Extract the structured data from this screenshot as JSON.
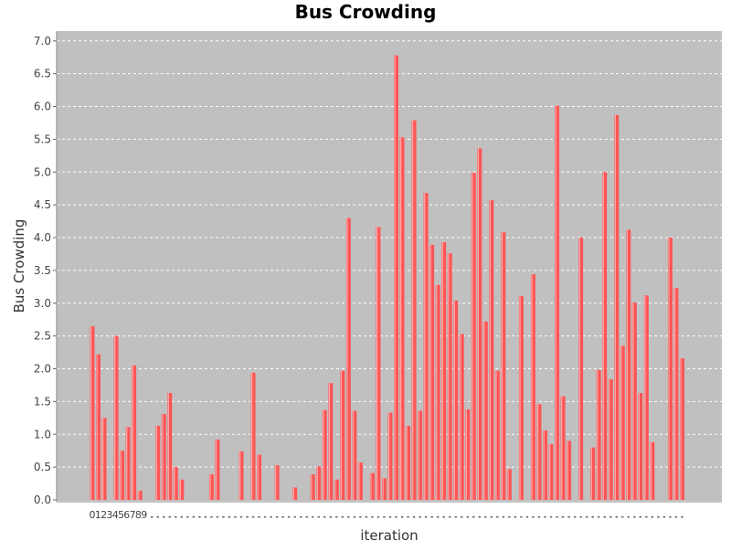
{
  "chart_data": {
    "type": "bar",
    "title": "Bus Crowding",
    "xlabel": "iteration",
    "ylabel": "Bus Crowding",
    "ylim": [
      0,
      7.15
    ],
    "yticks": [
      "0.0",
      "0.5",
      "1.0",
      "1.5",
      "2.0",
      "2.5",
      "3.0",
      "3.5",
      "4.0",
      "4.5",
      "5.0",
      "5.5",
      "6.0",
      "6.5",
      "7.0"
    ],
    "grid": true,
    "legend": "none",
    "colors": {
      "bar": "#ff5555",
      "bar_highlight": "#ffaaaa",
      "plot_bg": "#c0c0c0",
      "grid": "#ffffff"
    },
    "visible_category_labels": [
      "0",
      "1",
      "2",
      "3",
      "4",
      "5",
      "6",
      "7",
      "8",
      "9"
    ],
    "values": [
      2.65,
      2.22,
      1.25,
      0,
      2.5,
      0.75,
      1.11,
      2.05,
      0.14,
      0,
      0,
      1.13,
      1.31,
      1.63,
      0.5,
      0.31,
      0,
      0,
      0,
      0,
      0.39,
      0.92,
      0,
      0,
      0,
      0.74,
      0,
      1.94,
      0.69,
      0,
      0,
      0.53,
      0,
      0,
      0.19,
      0,
      0,
      0.39,
      0.51,
      1.37,
      1.78,
      0.31,
      1.97,
      4.3,
      1.36,
      0.57,
      0,
      0.41,
      4.16,
      0.33,
      1.33,
      6.78,
      5.53,
      1.13,
      5.79,
      1.36,
      4.68,
      3.89,
      3.28,
      3.93,
      3.76,
      3.04,
      2.53,
      1.38,
      4.99,
      5.36,
      2.72,
      4.57,
      1.97,
      4.08,
      0.47,
      0,
      3.11,
      0,
      3.44,
      1.46,
      1.06,
      0.85,
      6.01,
      1.58,
      0.9,
      0,
      4.0,
      0,
      0.8,
      1.98,
      5.0,
      1.84,
      5.87,
      2.35,
      4.12,
      3.01,
      1.63,
      3.12,
      0.88,
      0,
      0,
      4.0,
      3.23,
      2.16
    ]
  }
}
